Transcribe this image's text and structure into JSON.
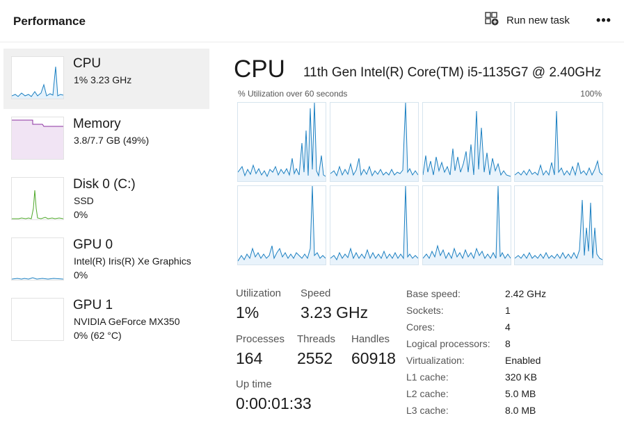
{
  "header": {
    "title": "Performance",
    "run_task_label": "Run new task",
    "more_label": "•••"
  },
  "sidebar": {
    "items": [
      {
        "name": "CPU",
        "sub1": "1%  3.23 GHz",
        "sub2": "",
        "color": "#1a7fc1"
      },
      {
        "name": "Memory",
        "sub1": "3.8/7.7 GB (49%)",
        "sub2": "",
        "color": "#8b2fa0"
      },
      {
        "name": "Disk 0 (C:)",
        "sub1": "SSD",
        "sub2": "0%",
        "color": "#4ea82a"
      },
      {
        "name": "GPU 0",
        "sub1": "Intel(R) Iris(R) Xe Graphics",
        "sub2": "0%",
        "color": "#1a7fc1"
      },
      {
        "name": "GPU 1",
        "sub1": "NVIDIA GeForce MX350",
        "sub2": "0%  (62 °C)",
        "color": "#1a7fc1"
      }
    ]
  },
  "main": {
    "title": "CPU",
    "model": "11th Gen Intel(R) Core(TM) i5-1135G7 @ 2.40GHz",
    "graph_caption": "% Utilization over 60 seconds",
    "graph_max": "100%",
    "graph_color": "#1a7fc1"
  },
  "stats": {
    "utilization_label": "Utilization",
    "utilization_value": "1%",
    "speed_label": "Speed",
    "speed_value": "3.23 GHz",
    "processes_label": "Processes",
    "processes_value": "164",
    "threads_label": "Threads",
    "threads_value": "2552",
    "handles_label": "Handles",
    "handles_value": "60918",
    "uptime_label": "Up time",
    "uptime_value": "0:00:01:33"
  },
  "specs": [
    {
      "key": "Base speed:",
      "value": "2.42 GHz"
    },
    {
      "key": "Sockets:",
      "value": "1"
    },
    {
      "key": "Cores:",
      "value": "4"
    },
    {
      "key": "Logical processors:",
      "value": "8"
    },
    {
      "key": "Virtualization:",
      "value": "Enabled"
    },
    {
      "key": "L1 cache:",
      "value": "320 KB"
    },
    {
      "key": "L2 cache:",
      "value": "5.0 MB"
    },
    {
      "key": "L3 cache:",
      "value": "8.0 MB"
    }
  ]
}
